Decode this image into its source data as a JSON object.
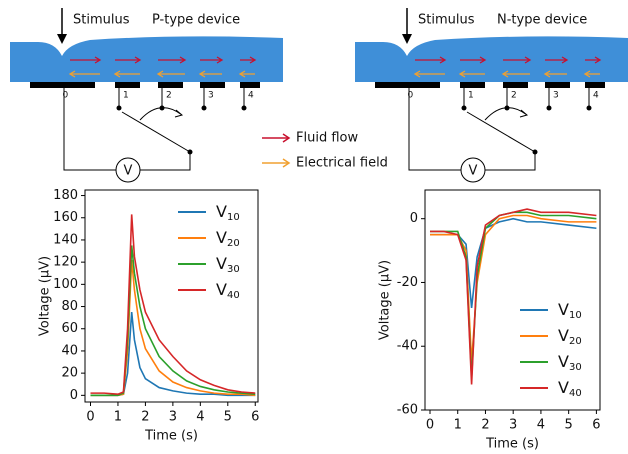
{
  "diagram": {
    "stimulus": "Stimulus",
    "p_title": "P-type device",
    "n_title": "N-type device",
    "electrodes": [
      "0",
      "1",
      "2",
      "3",
      "4"
    ],
    "meter": "V",
    "legend": {
      "fluid": "Fluid flow",
      "field": "Electrical field"
    }
  },
  "chart_data": [
    {
      "type": "line",
      "x_label": "Time (s)",
      "y_label": "Voltage (μV)",
      "x": [
        0,
        0.5,
        1.0,
        1.2,
        1.35,
        1.5,
        1.6,
        1.8,
        2.0,
        2.5,
        3.0,
        3.5,
        4.0,
        4.5,
        5.0,
        5.5,
        6.0
      ],
      "series": [
        {
          "name": "V10",
          "color": "#1f77b4",
          "values": [
            0,
            0,
            0,
            1,
            20,
            75,
            50,
            25,
            15,
            7,
            4,
            2,
            1,
            1,
            0,
            0,
            0
          ]
        },
        {
          "name": "V20",
          "color": "#ff7f0e",
          "values": [
            0,
            0,
            0,
            1,
            40,
            122,
            95,
            60,
            42,
            22,
            12,
            7,
            4,
            2,
            1,
            1,
            0
          ]
        },
        {
          "name": "V30",
          "color": "#2ca02c",
          "values": [
            0,
            0,
            0,
            2,
            50,
            135,
            110,
            80,
            60,
            35,
            22,
            13,
            8,
            5,
            3,
            2,
            1
          ]
        },
        {
          "name": "V40",
          "color": "#d62728",
          "values": [
            2,
            2,
            1,
            3,
            60,
            163,
            125,
            95,
            75,
            50,
            35,
            22,
            14,
            9,
            5,
            3,
            2
          ]
        }
      ],
      "xlim": [
        -0.2,
        6.1
      ],
      "xticks": [
        0,
        1,
        2,
        3,
        4,
        5,
        6
      ],
      "ylim": [
        -6,
        185
      ],
      "yticks": [
        0,
        20,
        40,
        60,
        80,
        100,
        120,
        140,
        160,
        180
      ],
      "legend": "upper right"
    },
    {
      "type": "line",
      "x_label": "Time (s)",
      "y_label": "Voltage (μV)",
      "x": [
        0,
        0.5,
        1.0,
        1.3,
        1.5,
        1.7,
        2.0,
        2.5,
        3.0,
        3.5,
        4.0,
        5.0,
        6.0
      ],
      "series": [
        {
          "name": "V10",
          "color": "#1f77b4",
          "values": [
            -5,
            -5,
            -5,
            -8,
            -28,
            -12,
            -3,
            -1,
            0,
            -1,
            -1,
            -2,
            -3
          ]
        },
        {
          "name": "V20",
          "color": "#ff7f0e",
          "values": [
            -5,
            -5,
            -5,
            -10,
            -45,
            -20,
            -5,
            0,
            1,
            1,
            0,
            -1,
            -1
          ]
        },
        {
          "name": "V30",
          "color": "#2ca02c",
          "values": [
            -4,
            -4,
            -4,
            -12,
            -50,
            -18,
            -3,
            1,
            2,
            2,
            1,
            1,
            0
          ]
        },
        {
          "name": "V40",
          "color": "#d62728",
          "values": [
            -4,
            -4,
            -5,
            -13,
            -52,
            -15,
            -2,
            1,
            2,
            3,
            2,
            2,
            1
          ]
        }
      ],
      "xlim": [
        -0.18,
        6.13
      ],
      "xticks": [
        0,
        1,
        2,
        3,
        4,
        5,
        6
      ],
      "ylim": [
        -60,
        9
      ],
      "yticks": [
        -60,
        -40,
        -20,
        0
      ],
      "legend": "lower right"
    }
  ]
}
